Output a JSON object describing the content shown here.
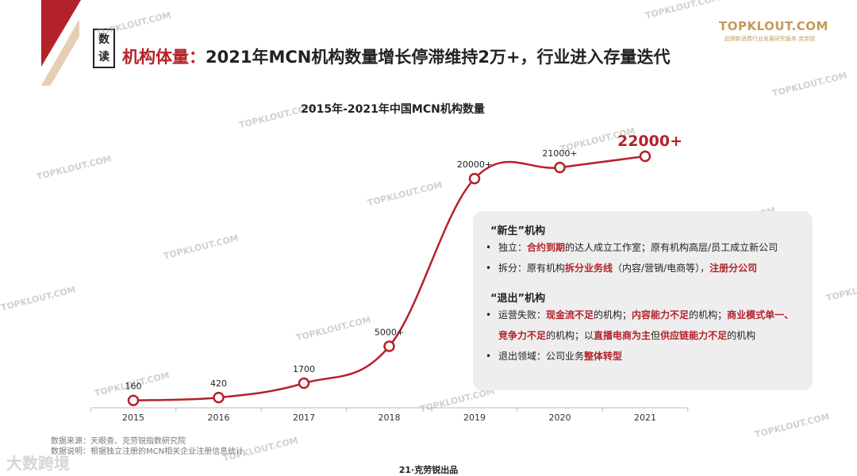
{
  "header": {
    "tag_line1": "数",
    "tag_line2": "读",
    "title_prefix": "机构体量：",
    "title_main": "2021年MCN机构数量增长停滞维持2万+，行业进入存量迭代"
  },
  "logo": {
    "main": "TOPKLOUT.COM",
    "sub": "品牌新消费行业发展研究服务 克劳锐"
  },
  "watermark_text": "TOPKLOUT.COM",
  "brand_watermark": "大数跨境",
  "colors": {
    "accent": "#b5212a",
    "beige": "#e4ceb5",
    "axis": "#bbbbbb",
    "box_bg": "#eeeeee"
  },
  "chart_data": {
    "type": "line",
    "title": "2015年-2021年中国MCN机构数量",
    "categories": [
      "2015",
      "2016",
      "2017",
      "2018",
      "2019",
      "2020",
      "2021"
    ],
    "values": [
      160,
      420,
      1700,
      5000,
      20000,
      21000,
      22000
    ],
    "data_labels": [
      "160",
      "420",
      "1700",
      "5000+",
      "20000+",
      "21000+",
      "22000+"
    ],
    "highlight_index": 6,
    "legend": "none",
    "grid": false
  },
  "info": {
    "new_title": "“新生”机构",
    "new_items": [
      {
        "parts": [
          {
            "t": "独立：",
            "hl": false
          },
          {
            "t": "合约到期",
            "hl": true
          },
          {
            "t": "的达人成立工作室；原有机构高层/员工成立新公司",
            "hl": false
          }
        ]
      },
      {
        "parts": [
          {
            "t": "拆分：原有机构",
            "hl": false
          },
          {
            "t": "拆分业务线",
            "hl": true
          },
          {
            "t": "（内容/营销/电商等），",
            "hl": false
          },
          {
            "t": "注册分公司",
            "hl": true
          }
        ]
      }
    ],
    "exit_title": "“退出”机构",
    "exit_items": [
      {
        "parts": [
          {
            "t": "运营失败：",
            "hl": false
          },
          {
            "t": "现金流不足",
            "hl": true
          },
          {
            "t": "的机构；",
            "hl": false
          },
          {
            "t": "内容能力不足",
            "hl": true
          },
          {
            "t": "的机构；",
            "hl": false
          },
          {
            "t": "商业模式单一、",
            "hl": true
          }
        ]
      },
      {
        "cont": true,
        "parts": [
          {
            "t": "竞争力不足",
            "hl": true
          },
          {
            "t": "的机构；以",
            "hl": false
          },
          {
            "t": "直播电商为主",
            "hl": true
          },
          {
            "t": "但",
            "hl": false
          },
          {
            "t": "供应链能力不足",
            "hl": true
          },
          {
            "t": "的机构",
            "hl": false
          }
        ]
      },
      {
        "parts": [
          {
            "t": "退出领域：公司业务",
            "hl": false
          },
          {
            "t": "整体转型",
            "hl": true
          }
        ]
      }
    ]
  },
  "source": {
    "line1": "数据来源：天眼查、克劳锐指数研究院",
    "line2": "数据说明：根据独立注册的MCN相关企业注册信息统计"
  },
  "footer": "21·克劳锐出品"
}
